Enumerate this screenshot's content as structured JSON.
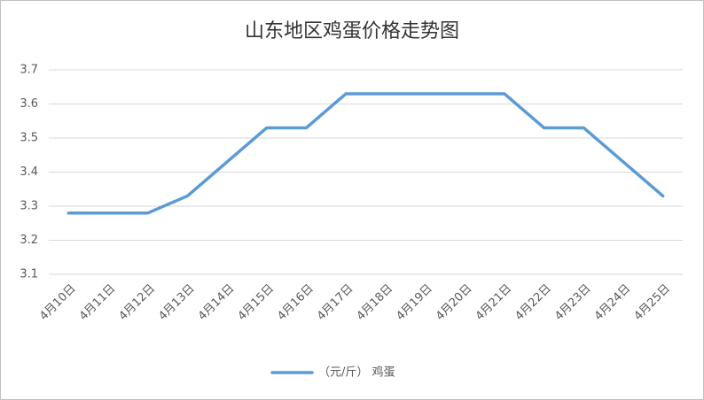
{
  "chart_data": {
    "type": "line",
    "title": "山东地区鸡蛋价格走势图",
    "categories": [
      "4月10日",
      "4月11日",
      "4月12日",
      "4月13日",
      "4月14日",
      "4月15日",
      "4月16日",
      "4月17日",
      "4月18日",
      "4月19日",
      "4月20日",
      "4月21日",
      "4月22日",
      "4月23日",
      "4月24日",
      "4月25日"
    ],
    "series": [
      {
        "name": "（元/斤） 鸡蛋",
        "color": "#5b9bd5",
        "values": [
          3.28,
          3.28,
          3.28,
          3.33,
          3.43,
          3.53,
          3.53,
          3.63,
          3.63,
          3.63,
          3.63,
          3.63,
          3.53,
          3.53,
          3.43,
          3.33
        ]
      }
    ],
    "ylim": [
      3.1,
      3.7
    ],
    "yticks": [
      3.1,
      3.2,
      3.3,
      3.4,
      3.5,
      3.6,
      3.7
    ],
    "grid": true,
    "legend": "bottom"
  }
}
